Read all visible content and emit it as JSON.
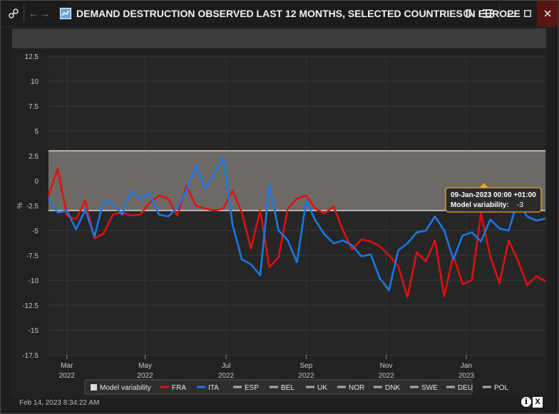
{
  "window": {
    "title": "DEMAND DESTRUCTION OBSERVED LAST 12 MONTHS, SELECTED COUNTRIES IN EUROPE",
    "title_icon": "chart-app-icon",
    "buttons": [
      "link-icon",
      "back-arrow-icon",
      "forward-arrow-icon",
      "refresh-icon",
      "menu-icon",
      "minimize-icon",
      "maximize-icon",
      "close-icon"
    ]
  },
  "footer": {
    "timestamp": "Feb 14, 2023 8:34:22 AM",
    "info_label": "i",
    "export_label": "X"
  },
  "tooltip": {
    "date": "09-Jan-2023 00:00 +01:00",
    "label": "Model variability:",
    "value": "-3"
  },
  "chart_data": {
    "type": "line",
    "title": "",
    "ylabel": "%",
    "ylim": [
      -17.5,
      12.5
    ],
    "yticks": [
      "12.5",
      "10",
      "7.5",
      "5",
      "2.5",
      "0",
      "-2.5",
      "-5",
      "-7.5",
      "-10",
      "-12.5",
      "-15",
      "-17.5"
    ],
    "xticks": [
      {
        "month": "Mar",
        "year": "2022"
      },
      {
        "month": "May",
        "year": "2022"
      },
      {
        "month": "Jul",
        "year": "2022"
      },
      {
        "month": "Sep",
        "year": "2022"
      },
      {
        "month": "Nov",
        "year": "2022"
      },
      {
        "month": "Jan",
        "year": "2023"
      }
    ],
    "x_unit": "weeks starting 2022-02-14",
    "band": {
      "name": "Model variability",
      "low": -3,
      "high": 3,
      "color": "#7a7570"
    },
    "series": [
      {
        "name": "FRA",
        "color": "#e01010",
        "values": [
          -1.5,
          1.2,
          -3.5,
          -3.9,
          -2.0,
          -5.8,
          -5.3,
          -3.4,
          -3.2,
          -3.5,
          -3.4,
          -2.2,
          -1.5,
          -1.8,
          -3.5,
          -0.5,
          -2.5,
          -2.8,
          -3.0,
          -2.8,
          -1.0,
          -3.2,
          -6.8,
          -3.0,
          -8.7,
          -7.7,
          -2.8,
          -1.8,
          -1.5,
          -2.8,
          -3.3,
          -2.6,
          -5.0,
          -6.9,
          -5.9,
          -6.1,
          -6.6,
          -7.5,
          -8.6,
          -11.7,
          -7.2,
          -8.1,
          -6.0,
          -11.6,
          -7.5,
          -10.4,
          -10.0,
          -3.3,
          -7.6,
          -10.3,
          -6.0,
          -8.0,
          -10.5,
          -9.6,
          -10.1
        ]
      },
      {
        "name": "ITA",
        "color": "#1a78e6",
        "values": [
          -1.8,
          -3.2,
          -3.0,
          -4.9,
          -2.9,
          -5.6,
          -2.0,
          -2.4,
          -3.4,
          -1.0,
          -1.8,
          -1.3,
          -3.4,
          -3.6,
          -2.7,
          -1.0,
          1.5,
          -0.8,
          0.6,
          2.4,
          -4.4,
          -7.9,
          -8.4,
          -9.5,
          -0.4,
          -5.0,
          -6.0,
          -8.2,
          -2.0,
          -4.0,
          -5.4,
          -6.3,
          -6.0,
          -6.5,
          -7.6,
          -7.4,
          -9.8,
          -11.0,
          -7.0,
          -6.3,
          -5.2,
          -5.0,
          -3.6,
          -5.0,
          -7.9,
          -5.5,
          -5.2,
          -6.1,
          -3.9,
          -4.8,
          -5.0,
          -2.0,
          -3.6,
          -4.0,
          -3.8
        ]
      },
      {
        "name": "ESP",
        "color": "#aaaaaa",
        "values": []
      },
      {
        "name": "BEL",
        "color": "#aaaaaa",
        "values": []
      },
      {
        "name": "UK",
        "color": "#aaaaaa",
        "values": []
      },
      {
        "name": "NOR",
        "color": "#aaaaaa",
        "values": []
      },
      {
        "name": "DNK",
        "color": "#aaaaaa",
        "values": []
      },
      {
        "name": "SWE",
        "color": "#aaaaaa",
        "values": []
      },
      {
        "name": "DEU",
        "color": "#aaaaaa",
        "values": []
      },
      {
        "name": "POL",
        "color": "#aaaaaa",
        "values": []
      }
    ],
    "grid": true,
    "legend_position": "bottom"
  }
}
